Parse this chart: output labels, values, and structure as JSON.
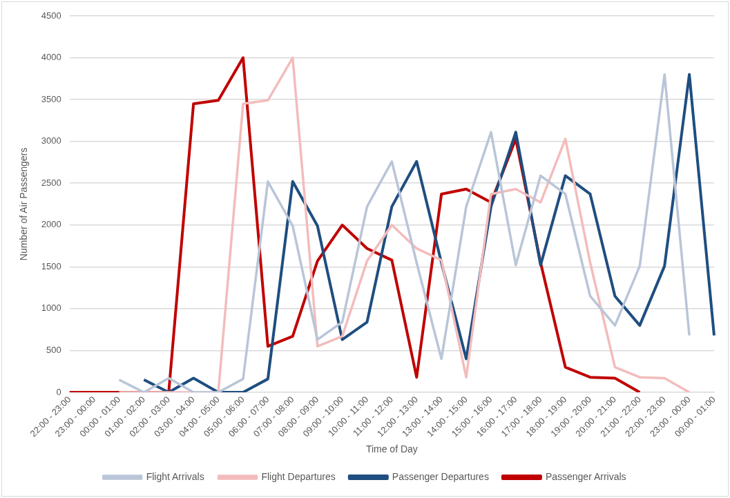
{
  "chart_data": {
    "type": "line",
    "xlabel": "Time of Day",
    "ylabel": "Number of Air Passengers",
    "categories": [
      "22:00 - 23:00",
      "23:00 - 00:00",
      "00:00 - 01:00",
      "01:00 - 02:00",
      "02:00 - 03:00",
      "03:00 - 04:00",
      "04:00 - 05:00",
      "05:00 - 06:00",
      "06:00 - 07:00",
      "07:00 - 08:00",
      "08:00 - 09:00",
      "09:00 - 10:00",
      "10:00 - 11:00",
      "11:00 - 12:00",
      "12:00 - 13:00",
      "13:00 - 14:00",
      "14:00 - 15:00",
      "15:00 - 16:00",
      "16:00 - 17:00",
      "17:00 - 18:00",
      "18:00 - 19:00",
      "19:00 - 20:00",
      "20:00 - 21:00",
      "21:00 - 22:00",
      "22:00 - 23:00",
      "23:00 - 00:00",
      "00:00 - 01:00"
    ],
    "series": [
      {
        "name": "Flight Arrivals",
        "color": "#b9c5d8",
        "values": [
          null,
          null,
          150,
          0,
          170,
          0,
          0,
          160,
          2520,
          1990,
          630,
          840,
          2220,
          2760,
          1550,
          400,
          2220,
          3110,
          1520,
          2590,
          2370,
          1150,
          800,
          1510,
          3800,
          680,
          null
        ]
      },
      {
        "name": "Flight Departures",
        "color": "#f3bcbc",
        "values": [
          null,
          null,
          0,
          0,
          0,
          0,
          0,
          3450,
          3490,
          4000,
          550,
          670,
          1570,
          2000,
          1720,
          1580,
          180,
          2370,
          2430,
          2270,
          3030,
          1550,
          300,
          180,
          170,
          0,
          null
        ]
      },
      {
        "name": "Passenger Departures",
        "color": "#1f4e80",
        "values": [
          null,
          null,
          null,
          150,
          0,
          170,
          0,
          0,
          160,
          2520,
          1990,
          630,
          840,
          2220,
          2760,
          1550,
          400,
          2220,
          3110,
          1520,
          2590,
          2370,
          1150,
          800,
          1510,
          3800,
          680
        ]
      },
      {
        "name": "Passenger Arrivals",
        "color": "#c00000",
        "values": [
          0,
          0,
          0,
          0,
          0,
          3450,
          3490,
          4000,
          550,
          670,
          1570,
          2000,
          1720,
          1580,
          180,
          2370,
          2430,
          2270,
          3030,
          1550,
          300,
          180,
          170,
          0,
          null,
          null,
          null
        ]
      }
    ],
    "ylim": [
      0,
      4500
    ],
    "yticks": [
      0,
      500,
      1000,
      1500,
      2000,
      2500,
      3000,
      3500,
      4000,
      4500
    ],
    "grid": "y",
    "legend": "bottom",
    "marker": "none",
    "line_style": "solid"
  }
}
